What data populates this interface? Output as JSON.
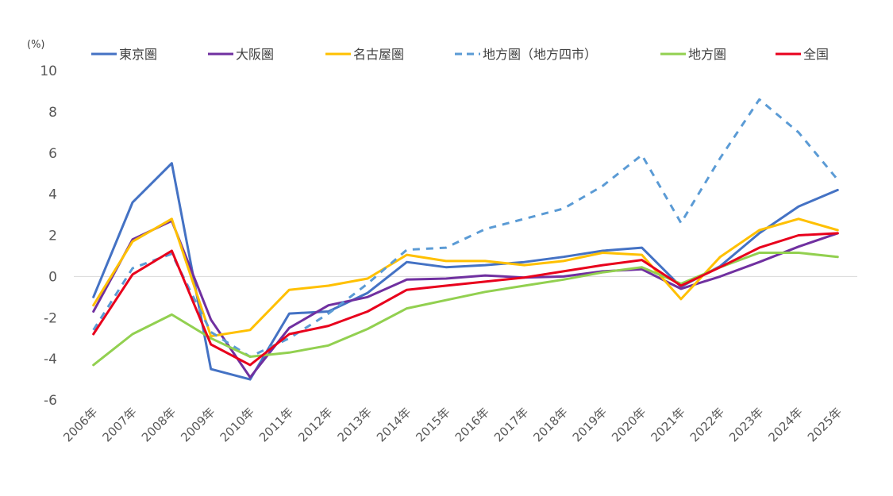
{
  "chart_data": {
    "type": "line",
    "unit_label": "(%)",
    "ylim": [
      -6,
      10
    ],
    "yticks": [
      "10",
      "8",
      "6",
      "4",
      "2",
      "0",
      "-2",
      "-4",
      "-6"
    ],
    "categories": [
      "2006年",
      "2007年",
      "2008年",
      "2009年",
      "2010年",
      "2011年",
      "2012年",
      "2013年",
      "2014年",
      "2015年",
      "2016年",
      "2017年",
      "2018年",
      "2019年",
      "2020年",
      "2021年",
      "2022年",
      "2023年",
      "2024年",
      "2025年"
    ],
    "legend_position": "top",
    "grid": false,
    "series": [
      {
        "name": "東京圏",
        "color": "#4472C4",
        "dashed": false,
        "values": [
          -1.0,
          3.6,
          5.5,
          -4.5,
          -5.0,
          -1.8,
          -1.7,
          -0.8,
          0.7,
          0.45,
          0.55,
          0.7,
          0.95,
          1.25,
          1.4,
          -0.5,
          0.5,
          2.1,
          3.4,
          4.2
        ]
      },
      {
        "name": "大阪圏",
        "color": "#7030A0",
        "dashed": false,
        "values": [
          -1.7,
          1.8,
          2.7,
          -2.1,
          -4.9,
          -2.5,
          -1.4,
          -1.0,
          -0.15,
          -0.1,
          0.05,
          -0.05,
          0.0,
          0.25,
          0.35,
          -0.6,
          0.0,
          0.7,
          1.45,
          2.1
        ]
      },
      {
        "name": "名古屋圏",
        "color": "#FFC000",
        "dashed": false,
        "values": [
          -1.4,
          1.7,
          2.8,
          -2.9,
          -2.6,
          -0.65,
          -0.45,
          -0.1,
          1.05,
          0.75,
          0.75,
          0.55,
          0.75,
          1.15,
          1.05,
          -1.1,
          0.95,
          2.25,
          2.8,
          2.25
        ]
      },
      {
        "name": "地方圏（地方四市）",
        "color": "#5B9BD5",
        "dashed": true,
        "values": [
          -2.6,
          0.4,
          1.1,
          -2.7,
          -3.9,
          -3.0,
          -1.8,
          -0.35,
          1.3,
          1.4,
          2.3,
          2.8,
          3.3,
          4.4,
          5.9,
          2.6,
          5.75,
          8.6,
          7.0,
          4.7
        ]
      },
      {
        "name": "地方圏",
        "color": "#92D050",
        "dashed": false,
        "values": [
          -4.3,
          -2.8,
          -1.85,
          -3.0,
          -3.9,
          -3.7,
          -3.35,
          -2.55,
          -1.55,
          -1.15,
          -0.75,
          -0.45,
          -0.15,
          0.2,
          0.45,
          -0.35,
          0.45,
          1.15,
          1.15,
          0.95
        ]
      },
      {
        "name": "全国",
        "color": "#E8001C",
        "dashed": false,
        "values": [
          -2.8,
          0.1,
          1.25,
          -3.3,
          -4.3,
          -2.8,
          -2.4,
          -1.7,
          -0.65,
          -0.45,
          -0.25,
          -0.05,
          0.25,
          0.55,
          0.8,
          -0.45,
          0.45,
          1.4,
          2.0,
          2.1
        ]
      }
    ]
  }
}
